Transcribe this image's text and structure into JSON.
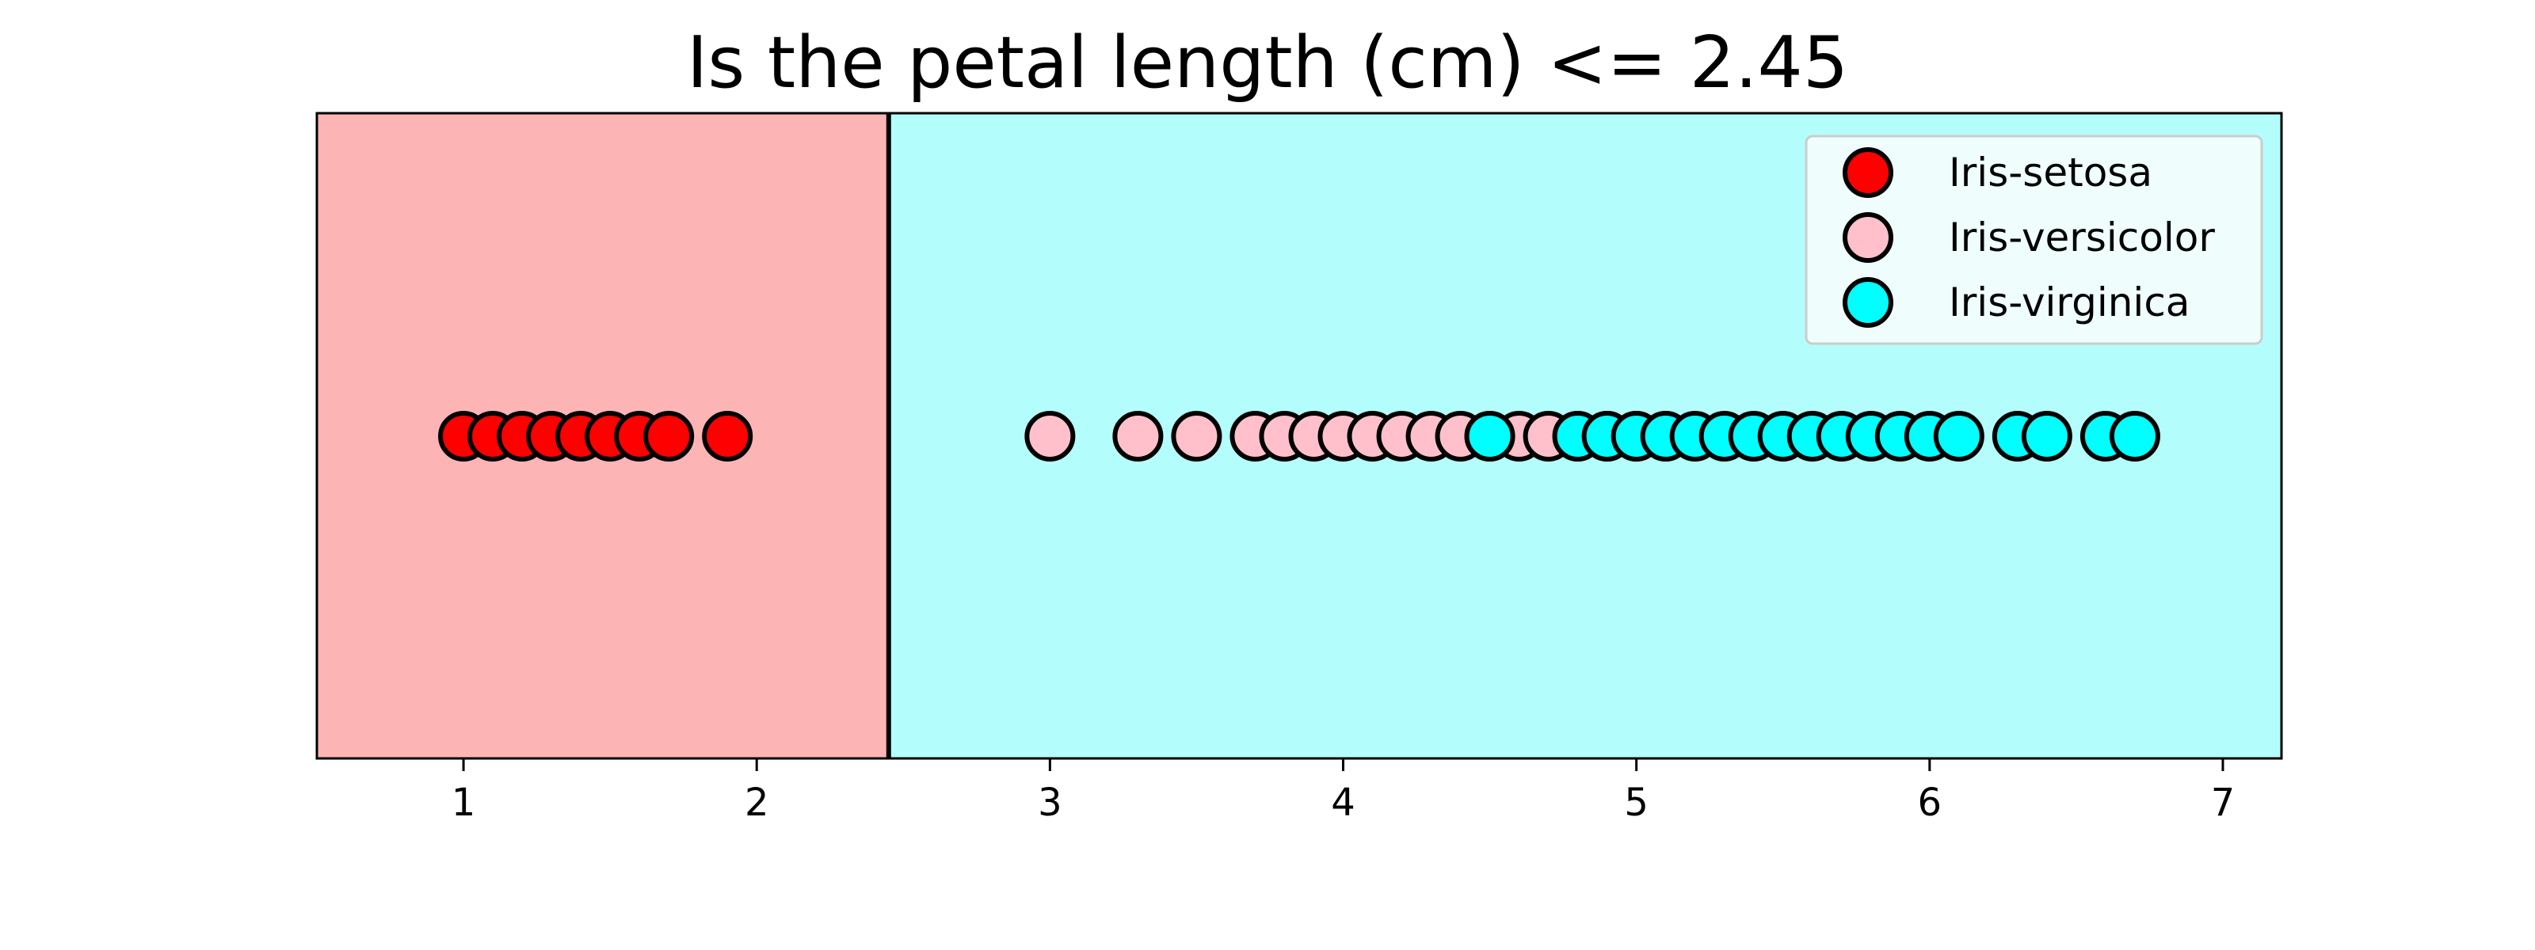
{
  "chart_data": {
    "type": "scatter",
    "title": "Is the petal length (cm) <= 2.45",
    "xlabel": "",
    "ylabel": "",
    "xlim": [
      0.5,
      7.2
    ],
    "xticks": [
      1,
      2,
      3,
      4,
      5,
      6,
      7
    ],
    "grid": false,
    "legend_position": "top-right",
    "threshold": 2.45,
    "regions": [
      {
        "side": "left",
        "class": "Iris-setosa",
        "color": "#fdb4b4"
      },
      {
        "side": "right",
        "class": "Iris-virginica",
        "color": "#b4fdfd"
      }
    ],
    "series": [
      {
        "name": "Iris-setosa",
        "color": "#ff0000",
        "x": [
          1.0,
          1.1,
          1.2,
          1.3,
          1.4,
          1.5,
          1.6,
          1.7,
          1.9
        ]
      },
      {
        "name": "Iris-versicolor",
        "color": "#ffc0cb",
        "x": [
          3.0,
          3.3,
          3.5,
          3.7,
          3.8,
          3.9,
          4.0,
          4.1,
          4.2,
          4.3,
          4.4,
          4.5,
          4.6,
          4.7,
          4.8,
          4.9,
          5.0,
          5.1
        ]
      },
      {
        "name": "Iris-virginica",
        "color": "#00ffff",
        "x": [
          4.5,
          4.8,
          4.9,
          5.0,
          5.1,
          5.2,
          5.3,
          5.4,
          5.5,
          5.6,
          5.7,
          5.8,
          5.9,
          6.0,
          6.1,
          6.3,
          6.4,
          6.6,
          6.7
        ]
      }
    ]
  }
}
